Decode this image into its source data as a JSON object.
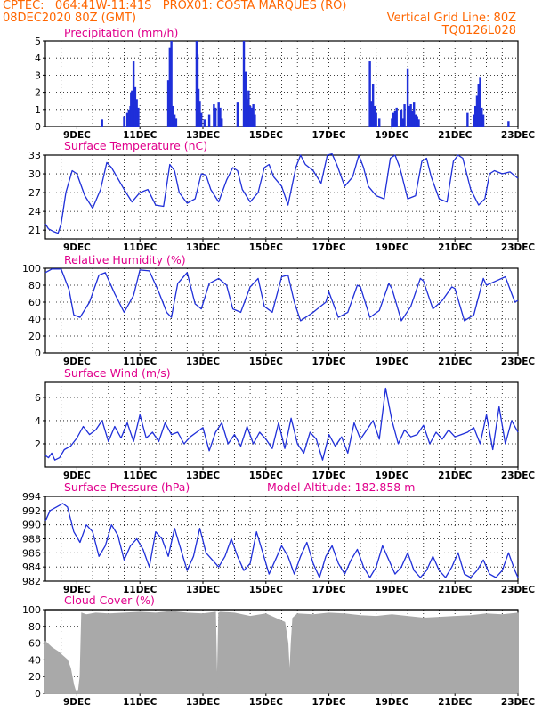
{
  "header": {
    "line1_left": "CPTEC:   064:41W-11:41S   PROX01: COSTA MARQUES (RO)",
    "line2_left": "08DEC2020 80Z (GMT)",
    "line2_right": "Vertical Grid Line: 80Z",
    "line3_right": "TQ0126L028"
  },
  "colors": {
    "header_text": "#ff6600",
    "panel_title": "#e0008c",
    "series": "#1f2fd9",
    "cloud_fill": "#a9a9a9",
    "grid": "#000000"
  },
  "chart_data": [
    {
      "id": "precip",
      "type": "bar",
      "title": "Precipitation (mm/h)",
      "ylim": [
        0,
        5
      ],
      "yticks": [
        0,
        1,
        2,
        3,
        4,
        5
      ],
      "xlim": [
        8.0,
        23.0
      ],
      "xticks": [
        9,
        11,
        13,
        15,
        17,
        19,
        21,
        23
      ],
      "xtick_labels": [
        "9DEC",
        "11DEC",
        "13DEC",
        "15DEC",
        "17DEC",
        "19DEC",
        "21DEC",
        "23DEC"
      ],
      "grid": true,
      "x": [
        9.8,
        10.5,
        10.6,
        10.65,
        10.7,
        10.72,
        10.75,
        10.8,
        10.85,
        10.9,
        10.95,
        11.9,
        11.95,
        12.0,
        12.05,
        12.1,
        12.15,
        12.8,
        12.83,
        12.86,
        12.9,
        12.95,
        13.05,
        13.2,
        13.35,
        13.4,
        13.5,
        13.55,
        13.6,
        14.1,
        14.3,
        14.35,
        14.4,
        14.42,
        14.45,
        14.5,
        14.55,
        14.6,
        14.65,
        18.3,
        18.35,
        18.4,
        18.45,
        18.5,
        18.6,
        19.0,
        19.05,
        19.1,
        19.15,
        19.3,
        19.35,
        19.4,
        19.5,
        19.55,
        19.6,
        19.65,
        19.7,
        19.75,
        19.8,
        19.85,
        21.4,
        21.6,
        21.65,
        21.7,
        21.75,
        21.8,
        21.85,
        21.9,
        22.7
      ],
      "values": [
        0.4,
        0.6,
        0.8,
        1.0,
        1.2,
        2.0,
        2.1,
        3.8,
        2.3,
        1.6,
        1.1,
        2.7,
        4.6,
        5.0,
        1.2,
        0.7,
        0.5,
        5.0,
        4.2,
        2.2,
        1.5,
        0.8,
        0.4,
        0.7,
        1.3,
        1.1,
        1.4,
        1.1,
        0.5,
        1.4,
        5.0,
        3.2,
        1.2,
        1.6,
        2.1,
        1.2,
        1.1,
        1.3,
        0.7,
        3.8,
        1.5,
        2.5,
        1.2,
        0.8,
        0.5,
        0.5,
        0.8,
        0.9,
        1.1,
        1.0,
        0.5,
        1.3,
        3.4,
        1.2,
        1.3,
        0.9,
        1.4,
        0.7,
        0.6,
        0.4,
        0.8,
        0.7,
        1.2,
        1.8,
        2.5,
        2.9,
        1.1,
        0.7,
        0.3
      ]
    },
    {
      "id": "temp",
      "type": "line",
      "title": "Surface Temperature (nC)",
      "ylim": [
        19.6,
        33
      ],
      "yticks": [
        21,
        24,
        27,
        30,
        33
      ],
      "xlim": [
        8.0,
        23.0
      ],
      "xticks": [
        9,
        11,
        13,
        15,
        17,
        19,
        21,
        23
      ],
      "xtick_labels": [
        "9DEC",
        "11DEC",
        "13DEC",
        "15DEC",
        "17DEC",
        "19DEC",
        "21DEC",
        "23DEC"
      ],
      "grid": true,
      "x": [
        8.0,
        8.1,
        8.25,
        8.4,
        8.5,
        8.65,
        8.85,
        9.0,
        9.25,
        9.5,
        9.75,
        9.95,
        10.1,
        10.5,
        10.75,
        11.0,
        11.25,
        11.5,
        11.75,
        11.95,
        12.1,
        12.25,
        12.5,
        12.75,
        12.95,
        13.1,
        13.25,
        13.5,
        13.75,
        13.95,
        14.1,
        14.25,
        14.5,
        14.75,
        14.95,
        15.1,
        15.25,
        15.5,
        15.7,
        15.95,
        16.1,
        16.25,
        16.5,
        16.75,
        16.95,
        17.1,
        17.25,
        17.5,
        17.75,
        17.95,
        18.1,
        18.25,
        18.5,
        18.75,
        18.95,
        19.1,
        19.25,
        19.5,
        19.75,
        19.95,
        20.1,
        20.25,
        20.5,
        20.75,
        20.95,
        21.1,
        21.25,
        21.5,
        21.75,
        21.95,
        22.1,
        22.25,
        22.5,
        22.75,
        22.95,
        23.0
      ],
      "values": [
        22.0,
        21.2,
        20.8,
        20.5,
        22.0,
        27.0,
        30.5,
        30.0,
        26.5,
        24.5,
        27.5,
        31.8,
        31.0,
        27.5,
        25.5,
        27.0,
        27.5,
        25.0,
        24.8,
        31.5,
        30.5,
        27.0,
        25.3,
        26.0,
        30.0,
        29.8,
        27.5,
        25.5,
        29.0,
        31.0,
        30.5,
        27.5,
        25.5,
        27.0,
        31.0,
        31.5,
        29.5,
        28.0,
        25.0,
        31.0,
        33.0,
        31.5,
        30.5,
        28.5,
        33.0,
        33.2,
        31.5,
        28.0,
        29.5,
        33.0,
        31.0,
        28.0,
        26.5,
        26.0,
        32.5,
        33.0,
        31.0,
        26.0,
        26.5,
        32.0,
        32.5,
        29.5,
        26.0,
        25.5,
        32.0,
        33.0,
        32.5,
        27.5,
        25.0,
        26.0,
        30.0,
        30.5,
        30.0,
        30.3,
        29.5,
        29.3
      ]
    },
    {
      "id": "rh",
      "type": "line",
      "title": "Relative Humidity (%)",
      "ylim": [
        0,
        100
      ],
      "yticks": [
        0,
        20,
        40,
        60,
        80,
        100
      ],
      "xlim": [
        8.0,
        23.0
      ],
      "xticks": [
        9,
        11,
        13,
        15,
        17,
        19,
        21,
        23
      ],
      "xtick_labels": [
        "9DEC",
        "11DEC",
        "13DEC",
        "15DEC",
        "17DEC",
        "19DEC",
        "21DEC",
        "23DEC"
      ],
      "grid": true,
      "x": [
        8.0,
        8.2,
        8.5,
        8.75,
        8.9,
        9.1,
        9.4,
        9.7,
        9.9,
        10.2,
        10.5,
        10.8,
        11.0,
        11.3,
        11.6,
        11.85,
        12.0,
        12.2,
        12.5,
        12.75,
        12.95,
        13.2,
        13.5,
        13.75,
        13.95,
        14.2,
        14.5,
        14.75,
        14.95,
        15.2,
        15.5,
        15.7,
        15.9,
        16.1,
        16.5,
        16.9,
        17.0,
        17.3,
        17.6,
        17.9,
        18.0,
        18.3,
        18.6,
        18.9,
        19.0,
        19.3,
        19.6,
        19.9,
        20.0,
        20.3,
        20.6,
        20.9,
        21.0,
        21.3,
        21.6,
        21.9,
        22.0,
        22.3,
        22.6,
        22.9,
        23.0
      ],
      "values": [
        95,
        99,
        99,
        75,
        45,
        42,
        60,
        92,
        95,
        70,
        48,
        68,
        98,
        97,
        72,
        48,
        42,
        82,
        95,
        58,
        52,
        82,
        88,
        80,
        52,
        48,
        78,
        88,
        55,
        48,
        90,
        92,
        60,
        38,
        48,
        60,
        72,
        42,
        48,
        80,
        78,
        42,
        50,
        82,
        76,
        38,
        55,
        88,
        85,
        52,
        62,
        78,
        76,
        38,
        45,
        88,
        80,
        85,
        90,
        60,
        62
      ]
    },
    {
      "id": "wind",
      "type": "line",
      "title": "Surface Wind (m/s)",
      "ylim": [
        0,
        7.3
      ],
      "yticks": [
        2,
        4,
        6
      ],
      "xlim": [
        8.0,
        23.0
      ],
      "xticks": [
        9,
        11,
        13,
        15,
        17,
        19,
        21,
        23
      ],
      "xtick_labels": [
        "9DEC",
        "11DEC",
        "13DEC",
        "15DEC",
        "17DEC",
        "19DEC",
        "21DEC",
        "23DEC"
      ],
      "grid": true,
      "x": [
        8.0,
        8.1,
        8.2,
        8.3,
        8.45,
        8.6,
        8.8,
        9.0,
        9.2,
        9.4,
        9.6,
        9.8,
        10.0,
        10.2,
        10.4,
        10.6,
        10.8,
        11.0,
        11.2,
        11.4,
        11.6,
        11.8,
        12.0,
        12.2,
        12.4,
        12.6,
        12.8,
        13.0,
        13.2,
        13.4,
        13.6,
        13.8,
        14.0,
        14.2,
        14.4,
        14.6,
        14.8,
        15.0,
        15.2,
        15.4,
        15.6,
        15.8,
        16.0,
        16.2,
        16.4,
        16.6,
        16.8,
        17.0,
        17.2,
        17.4,
        17.6,
        17.8,
        18.0,
        18.2,
        18.4,
        18.6,
        18.8,
        19.0,
        19.2,
        19.4,
        19.6,
        19.8,
        20.0,
        20.2,
        20.4,
        20.6,
        20.8,
        21.0,
        21.2,
        21.4,
        21.6,
        21.8,
        22.0,
        22.2,
        22.4,
        22.6,
        22.8,
        23.0
      ],
      "values": [
        1.0,
        0.8,
        1.2,
        0.6,
        0.8,
        1.5,
        1.8,
        2.5,
        3.5,
        2.8,
        3.2,
        4.0,
        2.2,
        3.5,
        2.5,
        3.8,
        2.2,
        4.5,
        2.5,
        3.0,
        2.2,
        3.8,
        2.8,
        3.0,
        2.0,
        2.6,
        3.0,
        3.4,
        1.4,
        3.0,
        3.8,
        2.0,
        2.8,
        1.8,
        3.5,
        2.0,
        3.0,
        2.4,
        1.6,
        3.8,
        1.6,
        4.2,
        2.0,
        1.2,
        3.0,
        2.4,
        0.6,
        2.8,
        1.8,
        2.6,
        1.2,
        3.8,
        2.4,
        3.2,
        4.0,
        2.4,
        6.8,
        4.0,
        2.0,
        3.2,
        2.6,
        2.8,
        3.6,
        2.0,
        3.0,
        2.4,
        3.2,
        2.6,
        2.8,
        3.0,
        3.4,
        2.0,
        4.5,
        1.5,
        5.2,
        2.0,
        4.0,
        3.0
      ]
    },
    {
      "id": "pres",
      "type": "line",
      "title": "Surface Pressure (hPa)",
      "annotation": "Model Altitude: 182.858  m",
      "ylim": [
        982,
        994
      ],
      "yticks": [
        982,
        984,
        986,
        988,
        990,
        992,
        994
      ],
      "xlim": [
        8.0,
        23.0
      ],
      "xticks": [
        9,
        11,
        13,
        15,
        17,
        19,
        21,
        23
      ],
      "xtick_labels": [
        "9DEC",
        "11DEC",
        "13DEC",
        "15DEC",
        "17DEC",
        "19DEC",
        "21DEC",
        "23DEC"
      ],
      "grid": true,
      "x": [
        8.0,
        8.15,
        8.35,
        8.55,
        8.7,
        8.9,
        9.1,
        9.3,
        9.5,
        9.7,
        9.9,
        10.1,
        10.3,
        10.5,
        10.7,
        10.9,
        11.1,
        11.3,
        11.5,
        11.7,
        11.9,
        12.1,
        12.3,
        12.5,
        12.7,
        12.9,
        13.1,
        13.3,
        13.5,
        13.7,
        13.9,
        14.1,
        14.3,
        14.5,
        14.7,
        14.9,
        15.1,
        15.3,
        15.5,
        15.7,
        15.9,
        16.1,
        16.3,
        16.5,
        16.7,
        16.9,
        17.1,
        17.3,
        17.5,
        17.7,
        17.9,
        18.1,
        18.3,
        18.5,
        18.7,
        18.9,
        19.1,
        19.3,
        19.5,
        19.7,
        19.9,
        20.1,
        20.3,
        20.5,
        20.7,
        20.9,
        21.1,
        21.3,
        21.5,
        21.7,
        21.9,
        22.1,
        22.3,
        22.5,
        22.7,
        22.9,
        23.0
      ],
      "values": [
        990.5,
        992.0,
        992.5,
        993.0,
        992.5,
        989.0,
        987.5,
        990.0,
        989.0,
        985.5,
        987.0,
        990.0,
        988.5,
        985.0,
        987.0,
        988.0,
        986.5,
        984.0,
        989.0,
        988.0,
        985.5,
        989.5,
        986.5,
        983.5,
        985.5,
        989.5,
        986.0,
        985.0,
        984.0,
        985.5,
        988.0,
        985.5,
        983.5,
        984.5,
        989.0,
        986.0,
        983.0,
        985.0,
        987.0,
        985.5,
        983.0,
        985.5,
        987.5,
        984.5,
        982.5,
        985.5,
        987.0,
        984.5,
        983.0,
        985.0,
        986.5,
        984.0,
        982.5,
        984.0,
        987.0,
        985.0,
        983.0,
        984.0,
        986.0,
        983.5,
        982.5,
        983.5,
        985.5,
        983.5,
        982.5,
        984.0,
        986.0,
        983.0,
        982.5,
        983.5,
        985.0,
        983.0,
        982.5,
        983.5,
        986.0,
        983.5,
        982.5
      ]
    },
    {
      "id": "cloud",
      "type": "area",
      "title": "Cloud Cover (%)",
      "ylim": [
        0,
        100
      ],
      "yticks": [
        0,
        20,
        40,
        60,
        80,
        100
      ],
      "xlim": [
        8.0,
        23.0
      ],
      "xticks": [
        9,
        11,
        13,
        15,
        17,
        19,
        21,
        23
      ],
      "xtick_labels": [
        "9DEC",
        "11DEC",
        "13DEC",
        "15DEC",
        "17DEC",
        "19DEC",
        "21DEC",
        "23DEC"
      ],
      "grid": true,
      "x": [
        8.0,
        8.2,
        8.4,
        8.55,
        8.7,
        8.8,
        8.9,
        8.95,
        9.0,
        9.05,
        9.1,
        9.15,
        9.3,
        9.6,
        10.0,
        10.5,
        11.0,
        11.5,
        12.0,
        12.5,
        13.0,
        13.4,
        13.45,
        13.5,
        13.55,
        14.0,
        14.5,
        15.0,
        15.6,
        15.7,
        15.75,
        15.8,
        15.85,
        16.0,
        16.5,
        17.0,
        17.5,
        18.0,
        18.5,
        19.0,
        19.5,
        20.0,
        20.5,
        21.0,
        21.5,
        22.0,
        22.5,
        23.0
      ],
      "values": [
        62,
        55,
        50,
        45,
        40,
        30,
        10,
        4,
        2,
        4,
        20,
        96,
        94,
        96,
        95,
        96,
        97,
        96,
        98,
        96,
        95,
        97,
        5,
        96,
        97,
        96,
        92,
        95,
        85,
        60,
        22,
        60,
        90,
        95,
        94,
        96,
        95,
        93,
        92,
        94,
        92,
        90,
        91,
        92,
        93,
        95,
        94,
        96
      ]
    }
  ]
}
